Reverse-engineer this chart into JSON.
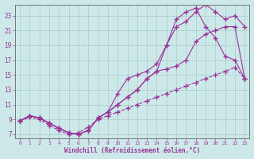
{
  "bg_color": "#cce8e8",
  "grid_color": "#aacccc",
  "line_color": "#993399",
  "xlabel": "Windchill (Refroidissement éolien,°C)",
  "xlim": [
    -0.5,
    23.5
  ],
  "ylim": [
    6.5,
    24.5
  ],
  "xticks": [
    0,
    1,
    2,
    3,
    4,
    5,
    6,
    7,
    8,
    9,
    10,
    11,
    12,
    13,
    14,
    15,
    16,
    17,
    18,
    19,
    20,
    21,
    22,
    23
  ],
  "yticks": [
    7,
    9,
    11,
    13,
    15,
    17,
    19,
    21,
    23
  ],
  "line1_x": [
    0,
    1,
    2,
    3,
    4,
    5,
    6,
    7,
    8,
    9,
    10,
    11,
    12,
    13,
    14,
    15,
    16,
    17,
    18,
    19,
    20,
    21,
    22,
    23
  ],
  "line1_y": [
    8.8,
    9.5,
    9.2,
    8.5,
    7.8,
    7.2,
    7.0,
    7.5,
    9.2,
    10.0,
    12.5,
    14.5,
    15.0,
    15.5,
    16.5,
    19.0,
    21.5,
    22.2,
    23.5,
    24.5,
    23.5,
    22.5,
    23.0,
    21.5
  ],
  "line2_x": [
    0,
    1,
    2,
    3,
    4,
    5,
    6,
    7,
    8,
    9,
    10,
    11,
    12,
    13,
    14,
    15,
    16,
    17,
    18,
    19,
    20,
    21,
    22,
    23
  ],
  "line2_y": [
    8.8,
    9.5,
    9.2,
    8.5,
    7.8,
    7.2,
    7.0,
    7.5,
    9.2,
    10.0,
    11.0,
    12.0,
    13.0,
    14.5,
    15.5,
    19.0,
    22.5,
    23.5,
    24.0,
    21.5,
    20.0,
    17.5,
    17.0,
    14.5
  ],
  "line3_x": [
    0,
    1,
    2,
    3,
    4,
    5,
    6,
    7,
    8,
    9,
    10,
    11,
    12,
    13,
    14,
    15,
    16,
    17,
    18,
    19,
    20,
    21,
    22,
    23
  ],
  "line3_y": [
    8.8,
    9.5,
    9.2,
    8.5,
    7.8,
    7.2,
    7.0,
    7.5,
    9.2,
    10.0,
    11.0,
    12.0,
    13.0,
    14.5,
    15.5,
    15.8,
    16.2,
    17.0,
    19.5,
    20.5,
    21.0,
    21.5,
    21.5,
    14.5
  ],
  "line4_x": [
    0,
    1,
    2,
    3,
    4,
    5,
    6,
    7,
    8,
    9,
    10,
    11,
    12,
    13,
    14,
    15,
    16,
    17,
    18,
    19,
    20,
    21,
    22,
    23
  ],
  "line4_y": [
    8.8,
    9.3,
    9.0,
    8.2,
    7.5,
    7.0,
    7.2,
    8.0,
    9.0,
    9.5,
    10.0,
    10.5,
    11.0,
    11.5,
    12.0,
    12.5,
    13.0,
    13.5,
    14.0,
    14.5,
    15.0,
    15.5,
    16.0,
    14.5
  ]
}
